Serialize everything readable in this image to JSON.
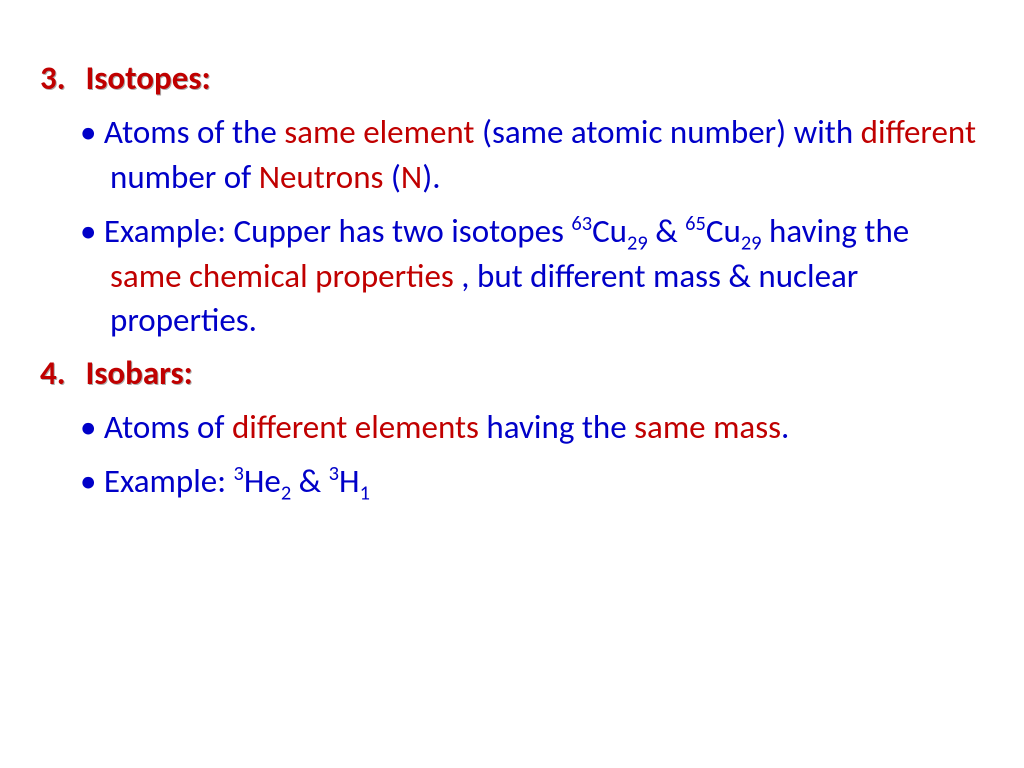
{
  "colors": {
    "blue": "#0000c8",
    "red": "#c00000",
    "background": "#ffffff"
  },
  "font": {
    "family": "Calibri",
    "size_pt": 33,
    "heading_weight": "bold"
  },
  "sections": [
    {
      "number": "3.",
      "title": "Isotopes:",
      "bullets": [
        {
          "runs": [
            {
              "t": "Atoms of the ",
              "c": "blue"
            },
            {
              "t": "same element ",
              "c": "red"
            },
            {
              "t": "(same atomic number) with ",
              "c": "blue"
            },
            {
              "t": "different ",
              "c": "red"
            },
            {
              "t": "number of ",
              "c": "blue"
            },
            {
              "t": "Neutrons ",
              "c": "red"
            },
            {
              "t": "(",
              "c": "blue"
            },
            {
              "t": "N",
              "c": "red"
            },
            {
              "t": ").",
              "c": "blue"
            }
          ]
        },
        {
          "runs": [
            {
              "t": "Example:  Cupper has two isotopes ",
              "c": "blue"
            },
            {
              "t": "63",
              "c": "blue",
              "sup": true
            },
            {
              "t": "Cu",
              "c": "blue"
            },
            {
              "t": "29",
              "c": "blue",
              "sub": true
            },
            {
              "t": " & ",
              "c": "blue"
            },
            {
              "t": "65",
              "c": "blue",
              "sup": true
            },
            {
              "t": "Cu",
              "c": "blue"
            },
            {
              "t": "29",
              "c": "blue",
              "sub": true
            },
            {
              "t": " having the ",
              "c": "blue"
            },
            {
              "t": "same chemical properties ",
              "c": "red"
            },
            {
              "t": ", but different mass & nuclear properties.",
              "c": "blue"
            }
          ]
        }
      ]
    },
    {
      "number": "4.",
      "title": "Isobars:",
      "bullets": [
        {
          "runs": [
            {
              "t": "Atoms of ",
              "c": "blue"
            },
            {
              "t": "different elements ",
              "c": "red"
            },
            {
              "t": "having the ",
              "c": "blue"
            },
            {
              "t": "same mass",
              "c": "red"
            },
            {
              "t": ".",
              "c": "blue"
            }
          ]
        },
        {
          "runs": [
            {
              "t": "Example: ",
              "c": "blue"
            },
            {
              "t": "3",
              "c": "blue",
              "sup": true
            },
            {
              "t": "He",
              "c": "blue"
            },
            {
              "t": "2",
              "c": "blue",
              "sub": true
            },
            {
              "t": " & ",
              "c": "blue"
            },
            {
              "t": "3",
              "c": "blue",
              "sup": true
            },
            {
              "t": "H",
              "c": "blue"
            },
            {
              "t": "1",
              "c": "blue",
              "sub": true
            }
          ]
        }
      ]
    }
  ]
}
